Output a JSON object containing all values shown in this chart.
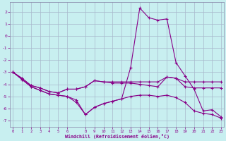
{
  "xlabel": "Windchill (Refroidissement éolien,°C)",
  "bg_color": "#c8eff0",
  "grid_color": "#a8b8cc",
  "line_color": "#880088",
  "hours": [
    0,
    1,
    2,
    3,
    4,
    5,
    6,
    7,
    8,
    9,
    10,
    11,
    12,
    13,
    14,
    15,
    16,
    17,
    18,
    19,
    20,
    21,
    22,
    23
  ],
  "line1": [
    -3.0,
    -3.5,
    -4.1,
    -4.3,
    -4.6,
    -4.7,
    -4.4,
    -4.4,
    -4.2,
    -3.7,
    -3.8,
    -3.8,
    -3.8,
    -3.8,
    -3.8,
    -3.8,
    -3.8,
    -3.4,
    -3.5,
    -3.8,
    -3.8,
    -3.8,
    -3.8,
    -3.8
  ],
  "line2": [
    -3.0,
    -3.5,
    -4.1,
    -4.3,
    -4.6,
    -4.7,
    -4.4,
    -4.4,
    -4.2,
    -3.7,
    -3.8,
    -3.9,
    -3.9,
    -3.9,
    -4.0,
    -4.1,
    -4.2,
    -3.4,
    -3.5,
    -4.2,
    -4.3,
    -4.3,
    -4.3,
    -4.3
  ],
  "line3": [
    -3.0,
    -3.6,
    -4.2,
    -4.5,
    -4.8,
    -4.9,
    -5.0,
    -5.5,
    -6.5,
    -5.9,
    -5.6,
    -5.4,
    -5.2,
    -5.0,
    -4.9,
    -4.9,
    -5.0,
    -4.9,
    -5.1,
    -5.5,
    -6.2,
    -6.4,
    -6.5,
    -6.8
  ],
  "line4": [
    -3.0,
    -3.6,
    -4.2,
    -4.5,
    -4.8,
    -4.9,
    -5.0,
    -5.3,
    -6.5,
    -5.9,
    -5.6,
    -5.4,
    -5.2,
    -2.6,
    2.3,
    1.5,
    1.3,
    1.4,
    -2.2,
    -3.3,
    -4.4,
    -6.2,
    -6.1,
    -6.7
  ],
  "yticks": [
    -7,
    -6,
    -5,
    -4,
    -3,
    -2,
    -1,
    0,
    1,
    2
  ],
  "xticks_vals": [
    0,
    1,
    2,
    3,
    4,
    5,
    6,
    8,
    9,
    10,
    11,
    12,
    13,
    14,
    15,
    16,
    17,
    18,
    19,
    20,
    21,
    22,
    23
  ],
  "xlim": [
    -0.3,
    23.3
  ],
  "ylim": [
    -7.5,
    2.8
  ]
}
